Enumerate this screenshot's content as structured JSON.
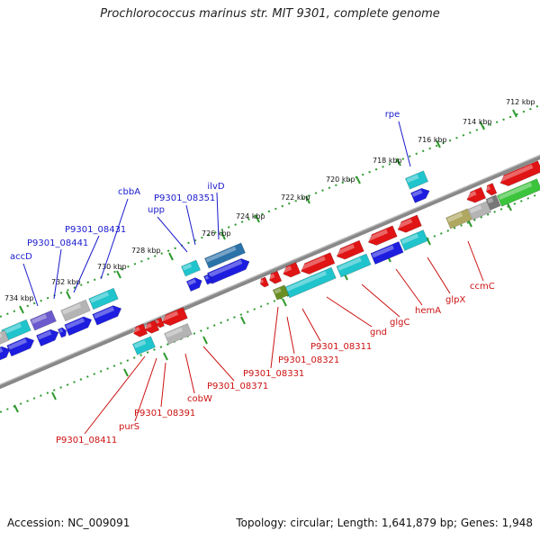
{
  "title": "Prochlorococcus marinus str. MIT 9301, complete genome",
  "footer": {
    "accession": "Accession: NC_009091",
    "summary": "Topology: circular; Length: 1,641,879 bp; Genes: 1,948"
  },
  "colors": {
    "forward_label": "#1a1acc",
    "reverse_label": "#cc1111",
    "forward_gene": "#1d1de0",
    "reverse_gene": "#e01414",
    "cds_cyan": "#20c4cc",
    "neutral_gray": "#b4b4b4",
    "backbone": "#888888",
    "tick_green": "#2f9a2f"
  },
  "scale_labels": [
    "712 kbp",
    "714 kbp",
    "716 kbp",
    "718 kbp",
    "720 kbp",
    "722 kbp",
    "724 kbp",
    "726 kbp",
    "728 kbp",
    "730 kbp",
    "732 kbp",
    "734 kbp"
  ],
  "forward_genes": [
    {
      "name": "rpe"
    },
    {
      "name": "ilvD"
    },
    {
      "name": "P9301_08351"
    },
    {
      "name": "upp"
    },
    {
      "name": "cbbA"
    },
    {
      "name": "P9301_08431"
    },
    {
      "name": "P9301_08441"
    },
    {
      "name": "accD"
    }
  ],
  "reverse_genes": [
    {
      "name": "ccmC"
    },
    {
      "name": "glpX"
    },
    {
      "name": "hemA"
    },
    {
      "name": "glgC"
    },
    {
      "name": "gnd"
    },
    {
      "name": "P9301_08311"
    },
    {
      "name": "P9301_08321"
    },
    {
      "name": "P9301_08331"
    },
    {
      "name": "P9301_08371"
    },
    {
      "name": "cobW"
    },
    {
      "name": "P9301_08391"
    },
    {
      "name": "purS"
    },
    {
      "name": "P9301_08411"
    }
  ]
}
